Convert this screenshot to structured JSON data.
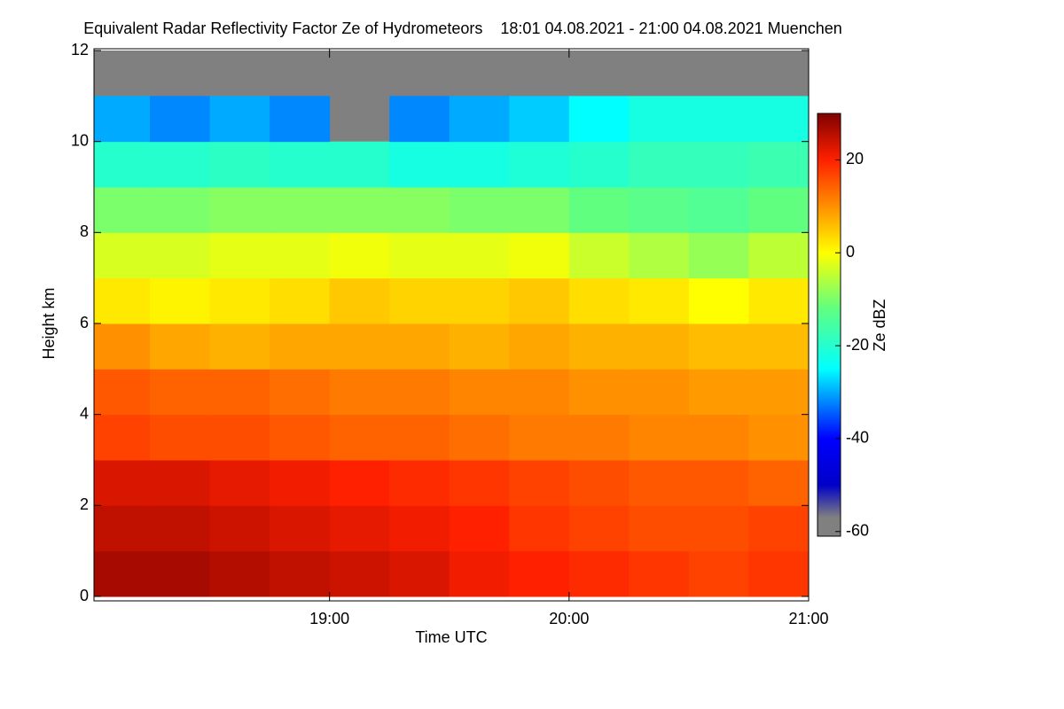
{
  "chart_data": {
    "type": "heatmap",
    "title": "Equivalent Radar Reflectivity Factor Ze of Hydrometeors    18:01 04.08.2021 - 21:00 04.08.2021 Muenchen",
    "x_label": "Time UTC",
    "y_label": "Height km",
    "colorbar_label": "Ze dBZ",
    "x": [
      18.0167,
      18.25,
      18.5,
      18.75,
      19.0,
      19.25,
      19.5,
      19.75,
      20.0,
      20.25,
      20.5,
      20.75,
      21.0
    ],
    "y": [
      0,
      1,
      2,
      3,
      4,
      5,
      6,
      7,
      8,
      9,
      10,
      11,
      12
    ],
    "z": [
      [
        27,
        27,
        26,
        25,
        24,
        23,
        21,
        20,
        19,
        18,
        17,
        18
      ],
      [
        25,
        25,
        24,
        23,
        22,
        21,
        20,
        18,
        17,
        16,
        16,
        17
      ],
      [
        23,
        23,
        22,
        21,
        20,
        19,
        18,
        17,
        16,
        15,
        15,
        14
      ],
      [
        17,
        16,
        16,
        15,
        14,
        14,
        13,
        12,
        12,
        11,
        11,
        10
      ],
      [
        15,
        14,
        14,
        13,
        12,
        12,
        11,
        11,
        10,
        10,
        9,
        9
      ],
      [
        10,
        8,
        7,
        8,
        8,
        8,
        7,
        8,
        7,
        7,
        6,
        6
      ],
      [
        2,
        1,
        2,
        3,
        5,
        4,
        4,
        5,
        3,
        2,
        0,
        2
      ],
      [
        -3,
        -3,
        -2,
        -2,
        -1,
        -2,
        -2,
        -1,
        -4,
        -6,
        -8,
        -5
      ],
      [
        -10,
        -10,
        -9,
        -9,
        -9,
        -9,
        -10,
        -10,
        -12,
        -13,
        -14,
        -12
      ],
      [
        -20,
        -20,
        -19,
        -20,
        -20,
        -22,
        -22,
        -21,
        -20,
        -18,
        -18,
        -17
      ],
      [
        -30,
        -32,
        -30,
        -32,
        null,
        -32,
        -30,
        -28,
        -25,
        -22,
        -22,
        -22
      ],
      [
        null,
        null,
        null,
        null,
        null,
        null,
        null,
        null,
        null,
        null,
        null,
        null
      ]
    ],
    "xlim": [
      18.0167,
      21.0
    ],
    "xticks": [
      {
        "value": 19,
        "label": "19:00"
      },
      {
        "value": 20,
        "label": "20:00"
      },
      {
        "value": 21,
        "label": "21:00"
      }
    ],
    "ylim": [
      0,
      12
    ],
    "yticks": [
      0,
      2,
      4,
      6,
      8,
      10,
      12
    ],
    "clim": [
      -61,
      30
    ],
    "cticks": [
      -60,
      -40,
      -20,
      0,
      20
    ],
    "missing_color": "#808080",
    "colormap": [
      {
        "value": -61,
        "color": "#808080"
      },
      {
        "value": -57,
        "color": "#808080"
      },
      {
        "value": -50,
        "color": "#0000c8"
      },
      {
        "value": -40,
        "color": "#0000ff"
      },
      {
        "value": -25,
        "color": "#00ffff"
      },
      {
        "value": -12,
        "color": "#60ff80"
      },
      {
        "value": 0,
        "color": "#ffff00"
      },
      {
        "value": 10,
        "color": "#ff9000"
      },
      {
        "value": 20,
        "color": "#ff2000"
      },
      {
        "value": 30,
        "color": "#800000"
      }
    ]
  }
}
